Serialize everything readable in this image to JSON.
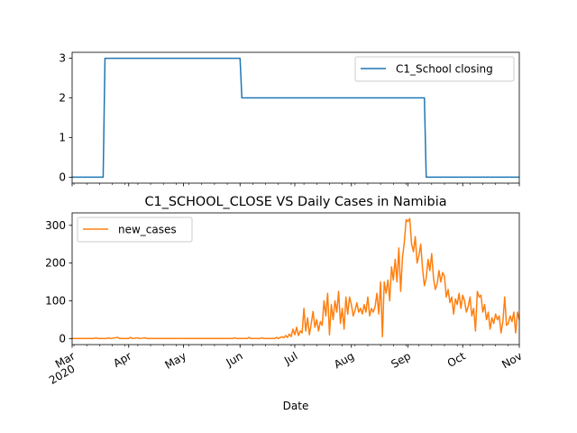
{
  "chart_data": [
    {
      "type": "line",
      "title": "",
      "xlabel": "",
      "ylabel": "",
      "xlim": [
        "2020-03-01",
        "2020-11-01"
      ],
      "ylim": [
        -0.15,
        3.15
      ],
      "yticks": [
        0,
        1,
        2,
        3
      ],
      "grid": false,
      "legend": {
        "position": "top-right",
        "entries": [
          "C1_School closing"
        ]
      },
      "series": [
        {
          "name": "C1_School closing",
          "color": "#1f77b4",
          "points": [
            [
              "2020-03-01",
              0
            ],
            [
              "2020-03-18",
              0
            ],
            [
              "2020-03-19",
              3
            ],
            [
              "2020-06-01",
              3
            ],
            [
              "2020-06-02",
              2
            ],
            [
              "2020-09-10",
              2
            ],
            [
              "2020-09-11",
              0
            ],
            [
              "2020-11-01",
              0
            ]
          ]
        }
      ]
    },
    {
      "type": "line",
      "title": "C1_SCHOOL_CLOSE VS Daily Cases in Namibia",
      "xlabel": "Date",
      "ylabel": "",
      "xlim": [
        "2020-03-01",
        "2020-11-01"
      ],
      "ylim": [
        -16,
        333
      ],
      "yticks": [
        0,
        100,
        200,
        300
      ],
      "xticks": [
        {
          "date": "2020-03-01",
          "label": "Mar",
          "sublabel": "2020"
        },
        {
          "date": "2020-04-01",
          "label": "Apr"
        },
        {
          "date": "2020-05-01",
          "label": "May"
        },
        {
          "date": "2020-06-01",
          "label": "Jun"
        },
        {
          "date": "2020-07-01",
          "label": "Jul"
        },
        {
          "date": "2020-08-01",
          "label": "Aug"
        },
        {
          "date": "2020-09-01",
          "label": "Sep"
        },
        {
          "date": "2020-10-01",
          "label": "Oct"
        },
        {
          "date": "2020-11-01",
          "label": "Nov"
        }
      ],
      "grid": false,
      "legend": {
        "position": "top-left",
        "entries": [
          "new_cases"
        ]
      },
      "series": [
        {
          "name": "new_cases",
          "color": "#ff7f0e",
          "points": [
            [
              "2020-03-01",
              0
            ],
            [
              "2020-03-13",
              0
            ],
            [
              "2020-03-14",
              2
            ],
            [
              "2020-03-15",
              0
            ],
            [
              "2020-03-20",
              0
            ],
            [
              "2020-03-21",
              2
            ],
            [
              "2020-03-22",
              0
            ],
            [
              "2020-03-26",
              3
            ],
            [
              "2020-03-27",
              0
            ],
            [
              "2020-04-01",
              0
            ],
            [
              "2020-04-02",
              3
            ],
            [
              "2020-04-03",
              0
            ],
            [
              "2020-04-06",
              2
            ],
            [
              "2020-04-07",
              0
            ],
            [
              "2020-04-10",
              2
            ],
            [
              "2020-04-11",
              0
            ],
            [
              "2020-05-28",
              0
            ],
            [
              "2020-05-29",
              2
            ],
            [
              "2020-05-30",
              0
            ],
            [
              "2020-06-01",
              0
            ],
            [
              "2020-06-05",
              0
            ],
            [
              "2020-06-06",
              3
            ],
            [
              "2020-06-07",
              0
            ],
            [
              "2020-06-12",
              0
            ],
            [
              "2020-06-13",
              2
            ],
            [
              "2020-06-14",
              0
            ],
            [
              "2020-06-20",
              0
            ],
            [
              "2020-06-21",
              3
            ],
            [
              "2020-06-22",
              0
            ],
            [
              "2020-06-24",
              5
            ],
            [
              "2020-06-25",
              2
            ],
            [
              "2020-06-26",
              8
            ],
            [
              "2020-06-27",
              3
            ],
            [
              "2020-06-28",
              12
            ],
            [
              "2020-06-29",
              5
            ],
            [
              "2020-06-30",
              25
            ],
            [
              "2020-07-01",
              10
            ],
            [
              "2020-07-02",
              30
            ],
            [
              "2020-07-03",
              8
            ],
            [
              "2020-07-04",
              20
            ],
            [
              "2020-07-05",
              15
            ],
            [
              "2020-07-06",
              80
            ],
            [
              "2020-07-07",
              20
            ],
            [
              "2020-07-08",
              55
            ],
            [
              "2020-07-09",
              10
            ],
            [
              "2020-07-10",
              40
            ],
            [
              "2020-07-11",
              72
            ],
            [
              "2020-07-12",
              30
            ],
            [
              "2020-07-13",
              50
            ],
            [
              "2020-07-14",
              20
            ],
            [
              "2020-07-15",
              45
            ],
            [
              "2020-07-16",
              35
            ],
            [
              "2020-07-17",
              100
            ],
            [
              "2020-07-18",
              60
            ],
            [
              "2020-07-19",
              120
            ],
            [
              "2020-07-20",
              10
            ],
            [
              "2020-07-21",
              90
            ],
            [
              "2020-07-22",
              50
            ],
            [
              "2020-07-23",
              100
            ],
            [
              "2020-07-24",
              70
            ],
            [
              "2020-07-25",
              125
            ],
            [
              "2020-07-26",
              40
            ],
            [
              "2020-07-27",
              80
            ],
            [
              "2020-07-28",
              25
            ],
            [
              "2020-07-29",
              110
            ],
            [
              "2020-07-30",
              65
            ],
            [
              "2020-07-31",
              110
            ],
            [
              "2020-08-01",
              90
            ],
            [
              "2020-08-02",
              60
            ],
            [
              "2020-08-03",
              75
            ],
            [
              "2020-08-04",
              95
            ],
            [
              "2020-08-05",
              70
            ],
            [
              "2020-08-06",
              80
            ],
            [
              "2020-08-07",
              65
            ],
            [
              "2020-08-08",
              90
            ],
            [
              "2020-08-09",
              70
            ],
            [
              "2020-08-10",
              110
            ],
            [
              "2020-08-11",
              60
            ],
            [
              "2020-08-12",
              80
            ],
            [
              "2020-08-13",
              70
            ],
            [
              "2020-08-14",
              85
            ],
            [
              "2020-08-15",
              120
            ],
            [
              "2020-08-16",
              65
            ],
            [
              "2020-08-17",
              150
            ],
            [
              "2020-08-18",
              5
            ],
            [
              "2020-08-19",
              150
            ],
            [
              "2020-08-20",
              120
            ],
            [
              "2020-08-21",
              155
            ],
            [
              "2020-08-22",
              100
            ],
            [
              "2020-08-23",
              190
            ],
            [
              "2020-08-24",
              155
            ],
            [
              "2020-08-25",
              210
            ],
            [
              "2020-08-26",
              150
            ],
            [
              "2020-08-27",
              240
            ],
            [
              "2020-08-28",
              125
            ],
            [
              "2020-08-29",
              215
            ],
            [
              "2020-08-30",
              255
            ],
            [
              "2020-08-31",
              315
            ],
            [
              "2020-09-01",
              310
            ],
            [
              "2020-09-02",
              318
            ],
            [
              "2020-09-03",
              250
            ],
            [
              "2020-09-04",
              230
            ],
            [
              "2020-09-05",
              270
            ],
            [
              "2020-09-06",
              200
            ],
            [
              "2020-09-07",
              220
            ],
            [
              "2020-09-08",
              250
            ],
            [
              "2020-09-09",
              185
            ],
            [
              "2020-09-10",
              140
            ],
            [
              "2020-09-11",
              160
            ],
            [
              "2020-09-12",
              210
            ],
            [
              "2020-09-13",
              180
            ],
            [
              "2020-09-14",
              225
            ],
            [
              "2020-09-15",
              160
            ],
            [
              "2020-09-16",
              130
            ],
            [
              "2020-09-17",
              145
            ],
            [
              "2020-09-18",
              180
            ],
            [
              "2020-09-19",
              150
            ],
            [
              "2020-09-20",
              175
            ],
            [
              "2020-09-21",
              165
            ],
            [
              "2020-09-22",
              110
            ],
            [
              "2020-09-23",
              130
            ],
            [
              "2020-09-24",
              95
            ],
            [
              "2020-09-25",
              110
            ],
            [
              "2020-09-26",
              65
            ],
            [
              "2020-09-27",
              105
            ],
            [
              "2020-09-28",
              90
            ],
            [
              "2020-09-29",
              120
            ],
            [
              "2020-09-30",
              80
            ],
            [
              "2020-10-01",
              115
            ],
            [
              "2020-10-02",
              100
            ],
            [
              "2020-10-03",
              70
            ],
            [
              "2020-10-04",
              85
            ],
            [
              "2020-10-05",
              110
            ],
            [
              "2020-10-06",
              60
            ],
            [
              "2020-10-07",
              80
            ],
            [
              "2020-10-08",
              20
            ],
            [
              "2020-10-09",
              125
            ],
            [
              "2020-10-10",
              110
            ],
            [
              "2020-10-11",
              115
            ],
            [
              "2020-10-12",
              70
            ],
            [
              "2020-10-13",
              90
            ],
            [
              "2020-10-14",
              50
            ],
            [
              "2020-10-15",
              70
            ],
            [
              "2020-10-16",
              25
            ],
            [
              "2020-10-17",
              55
            ],
            [
              "2020-10-18",
              40
            ],
            [
              "2020-10-19",
              65
            ],
            [
              "2020-10-20",
              50
            ],
            [
              "2020-10-21",
              60
            ],
            [
              "2020-10-22",
              15
            ],
            [
              "2020-10-23",
              45
            ],
            [
              "2020-10-24",
              110
            ],
            [
              "2020-10-25",
              35
            ],
            [
              "2020-10-26",
              40
            ],
            [
              "2020-10-27",
              60
            ],
            [
              "2020-10-28",
              45
            ],
            [
              "2020-10-29",
              70
            ],
            [
              "2020-10-30",
              15
            ],
            [
              "2020-10-31",
              70
            ],
            [
              "2020-11-01",
              50
            ]
          ]
        }
      ]
    }
  ]
}
